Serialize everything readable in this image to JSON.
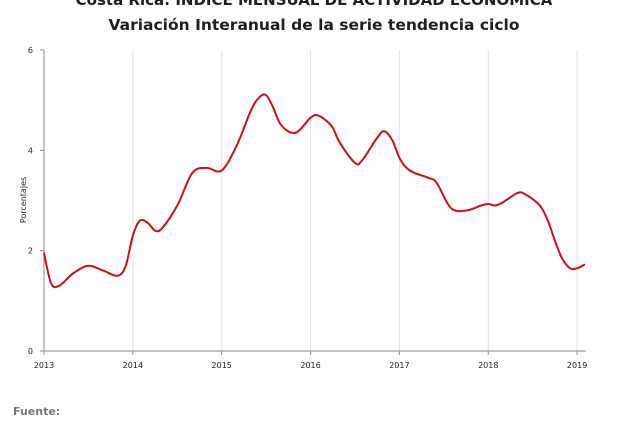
{
  "header": {
    "title_line1": "Costa Rica: ÍNDICE MENSUAL DE ACTIVIDAD ECONÓMICA",
    "title_line2": "Variación Interanual de la serie tendencia ciclo"
  },
  "footer": {
    "source_label": "Fuente:"
  },
  "chart_data": {
    "type": "line",
    "title": "Variación Interanual de la serie tendencia ciclo",
    "xlabel": "",
    "ylabel": "Porcentajes",
    "xlim": [
      2013,
      2019.1
    ],
    "ylim": [
      0,
      6
    ],
    "x_ticks": [
      "2013",
      "2014",
      "2015",
      "2016",
      "2017",
      "2018",
      "2019"
    ],
    "y_ticks": [
      "0",
      "2",
      "4",
      "6"
    ],
    "grid": "vertical",
    "line_color": "#c0141b",
    "series": [
      {
        "name": "",
        "x": [
          2013.0,
          2013.08,
          2013.17,
          2013.33,
          2013.5,
          2013.67,
          2013.83,
          2013.92,
          2014.0,
          2014.08,
          2014.17,
          2014.25,
          2014.33,
          2014.5,
          2014.67,
          2014.83,
          2015.0,
          2015.17,
          2015.33,
          2015.42,
          2015.5,
          2015.58,
          2015.67,
          2015.83,
          2016.0,
          2016.08,
          2016.17,
          2016.25,
          2016.33,
          2016.5,
          2016.58,
          2016.75,
          2016.83,
          2016.92,
          2017.0,
          2017.08,
          2017.17,
          2017.33,
          2017.42,
          2017.58,
          2017.75,
          2017.92,
          2018.0,
          2018.08,
          2018.17,
          2018.33,
          2018.42,
          2018.58,
          2018.67,
          2018.75,
          2018.83,
          2018.92,
          2019.0,
          2019.08
        ],
        "y": [
          1.95,
          1.35,
          1.3,
          1.55,
          1.7,
          1.6,
          1.5,
          1.7,
          2.3,
          2.6,
          2.55,
          2.4,
          2.45,
          2.9,
          3.55,
          3.65,
          3.6,
          4.1,
          4.8,
          5.05,
          5.1,
          4.85,
          4.5,
          4.35,
          4.65,
          4.7,
          4.6,
          4.45,
          4.15,
          3.75,
          3.8,
          4.25,
          4.38,
          4.2,
          3.85,
          3.65,
          3.55,
          3.45,
          3.35,
          2.85,
          2.8,
          2.9,
          2.93,
          2.9,
          2.97,
          3.15,
          3.12,
          2.9,
          2.6,
          2.2,
          1.85,
          1.65,
          1.65,
          1.72
        ]
      }
    ]
  }
}
